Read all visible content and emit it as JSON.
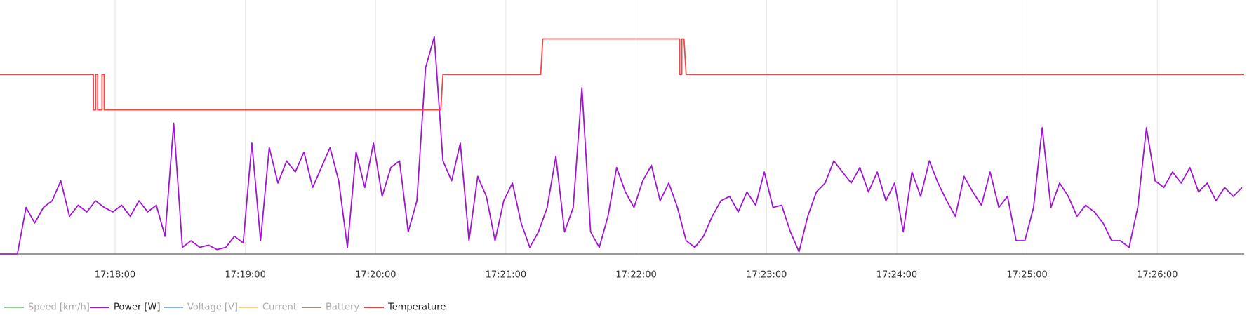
{
  "chart_data": {
    "type": "line",
    "xlim": [
      62227,
      62800
    ],
    "xticks": [
      {
        "value": 62280,
        "label": "17:18:00"
      },
      {
        "value": 62340,
        "label": "17:19:00"
      },
      {
        "value": 62400,
        "label": "17:20:00"
      },
      {
        "value": 62460,
        "label": "17:21:00"
      },
      {
        "value": 62520,
        "label": "17:22:00"
      },
      {
        "value": 62580,
        "label": "17:23:00"
      },
      {
        "value": 62640,
        "label": "17:24:00"
      },
      {
        "value": 62700,
        "label": "17:25:00"
      },
      {
        "value": 62760,
        "label": "17:26:00"
      }
    ],
    "ylim": [
      0,
      100
    ],
    "grid": true,
    "legend": "bottom-left",
    "series": [
      {
        "name": "Speed [km/h]",
        "color": "#8fd18f",
        "hidden": true
      },
      {
        "name": "Power [W]",
        "color": "#a015d2",
        "x": [
          62227,
          62231,
          62235,
          62239,
          62243,
          62247,
          62251,
          62255,
          62259,
          62263,
          62267,
          62271,
          62275,
          62279,
          62283,
          62287,
          62291,
          62295,
          62299,
          62303,
          62307,
          62311,
          62315,
          62319,
          62323,
          62327,
          62331,
          62335,
          62339,
          62343,
          62347,
          62351,
          62355,
          62359,
          62363,
          62367,
          62371,
          62375,
          62379,
          62383,
          62387,
          62391,
          62395,
          62399,
          62403,
          62407,
          62411,
          62415,
          62419,
          62423,
          62427,
          62431,
          62435,
          62439,
          62443,
          62447,
          62451,
          62455,
          62459,
          62463,
          62467,
          62471,
          62475,
          62479,
          62483,
          62487,
          62491,
          62495,
          62499,
          62503,
          62507,
          62511,
          62515,
          62519,
          62523,
          62527,
          62531,
          62535,
          62539,
          62543,
          62547,
          62551,
          62555,
          62559,
          62563,
          62567,
          62571,
          62575,
          62579,
          62583,
          62587,
          62591,
          62595,
          62599,
          62603,
          62607,
          62611,
          62615,
          62619,
          62623,
          62627,
          62631,
          62635,
          62639,
          62643,
          62647,
          62651,
          62655,
          62659,
          62663,
          62667,
          62671,
          62675,
          62679,
          62683,
          62687,
          62691,
          62695,
          62699,
          62703,
          62707,
          62711,
          62715,
          62719,
          62723,
          62727,
          62731,
          62735,
          62739,
          62743,
          62747,
          62751,
          62755,
          62759,
          62763,
          62767,
          62771,
          62775,
          62779,
          62783,
          62787,
          62791,
          62795,
          62799
        ],
        "values": [
          0,
          0,
          0,
          21,
          14,
          21,
          24,
          33,
          17,
          22,
          19,
          24,
          21,
          19,
          22,
          17,
          24,
          19,
          22,
          8,
          59,
          3,
          6,
          3,
          4,
          2,
          3,
          8,
          5,
          50,
          6,
          48,
          32,
          42,
          37,
          46,
          30,
          39,
          48,
          33,
          3,
          46,
          30,
          50,
          26,
          39,
          42,
          10,
          24,
          84,
          98,
          42,
          33,
          50,
          6,
          35,
          26,
          6,
          24,
          32,
          14,
          3,
          10,
          21,
          44,
          10,
          21,
          75,
          10,
          3,
          17,
          39,
          28,
          21,
          33,
          40,
          24,
          32,
          21,
          6,
          3,
          8,
          17,
          24,
          26,
          19,
          28,
          22,
          37,
          21,
          22,
          10,
          1,
          17,
          28,
          32,
          42,
          37,
          32,
          39,
          28,
          37,
          24,
          32,
          10,
          37,
          26,
          42,
          32,
          24,
          17,
          35,
          28,
          22,
          37,
          21,
          26,
          6,
          6,
          21,
          57,
          21,
          32,
          26,
          17,
          22,
          19,
          14,
          6,
          6,
          3,
          21,
          57,
          33,
          30,
          37,
          32,
          39,
          28,
          32,
          24,
          30,
          26,
          30
        ]
      },
      {
        "name": "Voltage [V]",
        "color": "#7fb2f0",
        "hidden": true
      },
      {
        "name": "Current",
        "color": "#f0d080",
        "hidden": true
      },
      {
        "name": "Battery",
        "color": "#a08c80",
        "hidden": true
      },
      {
        "name": "Temperature",
        "color": "#f04848",
        "x": [
          62227,
          62270,
          62270,
          62271,
          62271,
          62272,
          62272,
          62274,
          62274,
          62275,
          62275,
          62430,
          62431,
          62476,
          62477,
          62540,
          62540,
          62541,
          62541,
          62542,
          62543,
          62800
        ],
        "values": [
          81,
          81,
          65,
          65,
          81,
          81,
          65,
          65,
          81,
          81,
          65,
          65,
          81,
          81,
          97,
          97,
          81,
          81,
          97,
          97,
          81,
          81
        ]
      }
    ]
  }
}
